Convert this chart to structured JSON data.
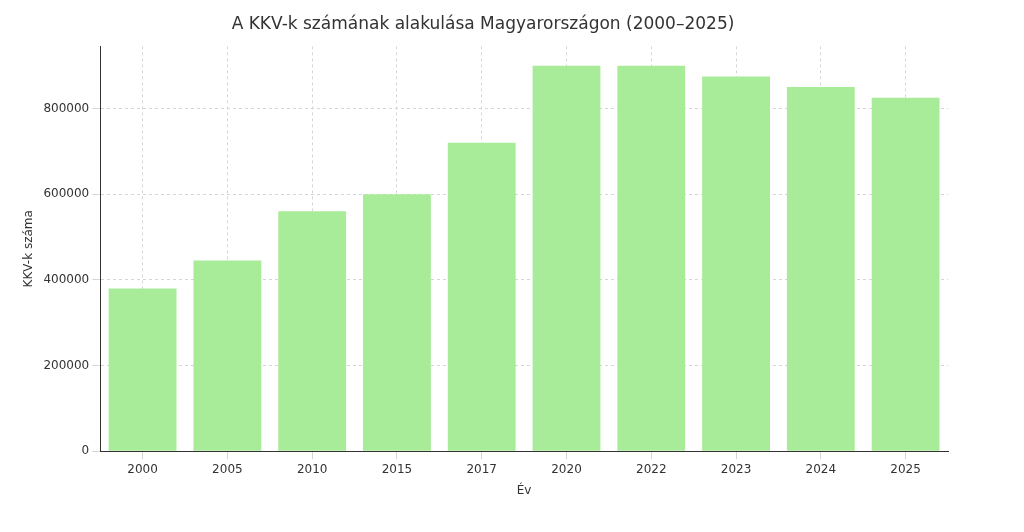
{
  "chart_data": {
    "type": "bar",
    "title": "A KKV-k számának alakulása Magyarországon (2000–2025)",
    "xlabel": "Év",
    "ylabel": "KKV-k száma",
    "categories": [
      "2000",
      "2005",
      "2010",
      "2015",
      "2017",
      "2020",
      "2022",
      "2023",
      "2024",
      "2025"
    ],
    "values": [
      380000,
      445000,
      560000,
      600000,
      720000,
      900000,
      900000,
      875000,
      850000,
      825000
    ],
    "color": "#a8eb98",
    "ylim": [
      0,
      945000
    ],
    "yticks": [
      0,
      200000,
      400000,
      600000,
      800000
    ],
    "grid": true
  }
}
